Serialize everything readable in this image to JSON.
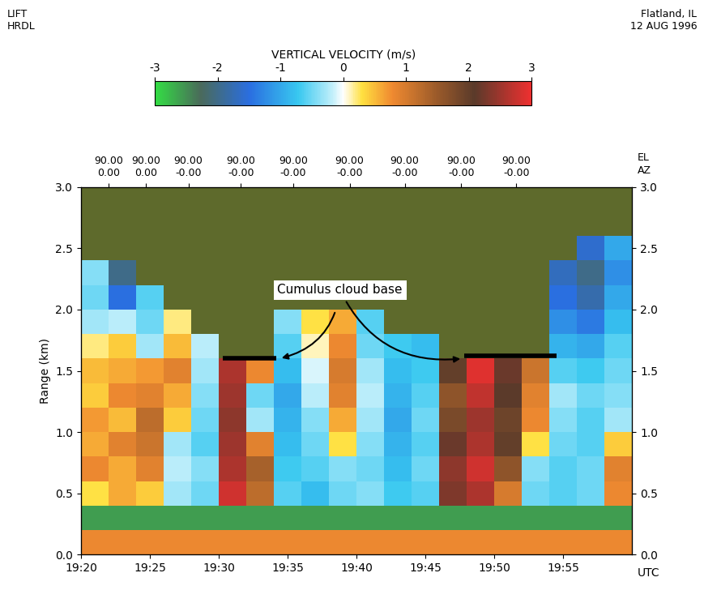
{
  "chart_data": {
    "type": "heatmap",
    "header": {
      "left": [
        "LIFT",
        "HRDL"
      ],
      "right": [
        "Flatland, IL",
        "12 AUG 1996"
      ]
    },
    "xlabel": "UTC",
    "ylabel": "Range (km)",
    "xlim": [
      20,
      60
    ],
    "ylim": [
      0,
      3
    ],
    "xticks": [
      {
        "value": 20,
        "label": "19:20"
      },
      {
        "value": 25,
        "label": "19:25"
      },
      {
        "value": 30,
        "label": "19:30"
      },
      {
        "value": 35,
        "label": "19:35"
      },
      {
        "value": 40,
        "label": "19:40"
      },
      {
        "value": 45,
        "label": "19:45"
      },
      {
        "value": 50,
        "label": "19:50"
      },
      {
        "value": 55,
        "label": "19:55"
      }
    ],
    "yticks": [
      {
        "value": 0,
        "label": "0.0"
      },
      {
        "value": 0.5,
        "label": "0.5"
      },
      {
        "value": 1,
        "label": "1.0"
      },
      {
        "value": 1.5,
        "label": "1.5"
      },
      {
        "value": 2,
        "label": "2.0"
      },
      {
        "value": 2.5,
        "label": "2.5"
      },
      {
        "value": 3,
        "label": "3.0"
      }
    ],
    "top_xticks": [
      {
        "value": 22,
        "label": "90.00\n0.00"
      },
      {
        "value": 24.7,
        "label": "90.00\n0.00"
      },
      {
        "value": 27.8,
        "label": "90.00\n-0.00"
      },
      {
        "value": 31.6,
        "label": "90.00\n-0.00"
      },
      {
        "value": 35.4,
        "label": "90.00\n-0.00"
      },
      {
        "value": 39.5,
        "label": "90.00\n-0.00"
      },
      {
        "value": 43.5,
        "label": "90.00\n-0.00"
      },
      {
        "value": 47.6,
        "label": "90.00\n-0.00"
      },
      {
        "value": 51.6,
        "label": "90.00\n-0.00"
      }
    ],
    "top_axis_labels": [
      "EL",
      "AZ"
    ],
    "colorbar": {
      "label": "VERTICAL VELOCITY (m/s)",
      "range": [
        -3,
        3
      ],
      "ticks": [
        -3,
        -2,
        -1,
        0,
        1,
        2,
        3
      ]
    },
    "time_edges": [
      20,
      22,
      24,
      26,
      28,
      30,
      32,
      34,
      36,
      38,
      40,
      42,
      44,
      46,
      48,
      50,
      52,
      54,
      56,
      58,
      60
    ],
    "range_edges": [
      0,
      0.2,
      0.4,
      0.6,
      0.8,
      1.0,
      1.2,
      1.4,
      1.6,
      1.8,
      2.0,
      2.2,
      2.4,
      2.6,
      2.8,
      3.0
    ],
    "cells": [
      [
        0.8,
        0.8,
        0.8,
        0.8,
        0.8,
        0.8,
        0.8,
        0.8,
        0.8,
        0.8,
        0.8,
        0.8,
        0.8,
        0.8,
        0.8,
        0.8,
        0.8,
        0.8,
        0.8,
        0.8
      ],
      [
        -2.6,
        -2.6,
        -2.6,
        -2.6,
        -2.6,
        -2.6,
        -2.6,
        -2.6,
        -2.6,
        -2.6,
        -2.6,
        -2.6,
        -2.6,
        -2.6,
        -2.6,
        -2.6,
        -2.6,
        -2.6,
        -2.6,
        -2.6
      ],
      [
        0.3,
        0.6,
        0.4,
        -0.3,
        -0.5,
        2.8,
        1.2,
        -0.6,
        -0.8,
        -0.5,
        -0.4,
        -0.7,
        -0.6,
        2.3,
        2.6,
        1.0,
        -0.5,
        -0.6,
        -0.5,
        0.8
      ],
      [
        0.8,
        0.6,
        0.9,
        -0.2,
        -0.4,
        2.6,
        1.4,
        -0.7,
        -0.6,
        -0.4,
        -0.5,
        -0.8,
        -0.5,
        2.4,
        2.8,
        1.6,
        -0.4,
        -0.6,
        -0.5,
        0.9
      ],
      [
        0.6,
        0.9,
        1.1,
        -0.3,
        -0.6,
        2.5,
        0.9,
        -0.8,
        -0.5,
        0.3,
        -0.4,
        -0.9,
        -0.6,
        2.2,
        2.6,
        2.0,
        0.3,
        -0.5,
        -0.6,
        0.4
      ],
      [
        0.7,
        0.5,
        1.2,
        0.4,
        -0.5,
        2.4,
        -0.3,
        -0.9,
        -0.4,
        0.6,
        -0.3,
        -1.0,
        -0.5,
        1.8,
        2.5,
        1.9,
        0.8,
        -0.4,
        -0.6,
        -0.3
      ],
      [
        0.4,
        0.8,
        0.9,
        0.6,
        -0.4,
        2.5,
        -0.5,
        -1.0,
        -0.2,
        0.9,
        -0.2,
        -0.9,
        -0.6,
        1.6,
        2.7,
        2.1,
        0.9,
        -0.3,
        -0.5,
        -0.4
      ],
      [
        0.5,
        0.6,
        0.7,
        0.9,
        -0.3,
        2.6,
        0.8,
        -0.8,
        -0.1,
        1.0,
        -0.3,
        -0.8,
        -0.7,
        2.0,
        2.9,
        2.2,
        1.1,
        -0.6,
        -0.7,
        -0.5
      ],
      [
        0.2,
        0.4,
        -0.3,
        0.5,
        -0.2,
        null,
        null,
        -0.6,
        0.1,
        0.8,
        -0.5,
        -0.7,
        -0.8,
        null,
        null,
        null,
        null,
        -0.9,
        -1.0,
        -0.6
      ],
      [
        -0.3,
        -0.2,
        -0.5,
        0.2,
        null,
        null,
        null,
        -0.4,
        0.3,
        0.6,
        -0.6,
        null,
        null,
        null,
        null,
        null,
        null,
        -1.2,
        -1.4,
        -0.8
      ],
      [
        -0.5,
        -1.5,
        -0.6,
        null,
        null,
        null,
        null,
        null,
        null,
        null,
        null,
        null,
        null,
        null,
        null,
        null,
        null,
        -1.5,
        -1.8,
        -1.0
      ],
      [
        -0.4,
        -2.0,
        null,
        null,
        null,
        null,
        null,
        null,
        null,
        null,
        null,
        null,
        null,
        null,
        null,
        null,
        null,
        -1.7,
        -2.0,
        -1.2
      ],
      [
        null,
        null,
        null,
        null,
        null,
        null,
        null,
        null,
        null,
        null,
        null,
        null,
        null,
        null,
        null,
        null,
        null,
        null,
        -1.6,
        -1.0
      ],
      [
        null,
        null,
        null,
        null,
        null,
        null,
        null,
        null,
        null,
        null,
        null,
        null,
        null,
        null,
        null,
        null,
        null,
        null,
        null,
        null
      ],
      [
        null,
        null,
        null,
        null,
        null,
        null,
        null,
        null,
        null,
        null,
        null,
        null,
        null,
        null,
        null,
        null,
        null,
        null,
        null,
        null
      ]
    ],
    "cloud_base_lines": [
      {
        "x": [
          30.3,
          34.2
        ],
        "y": 1.6
      },
      {
        "x": [
          47.8,
          54.5
        ],
        "y": 1.62
      }
    ],
    "annotation": {
      "text": "Cumulus cloud base",
      "targets": [
        [
          34.4,
          1.6
        ],
        [
          47.7,
          1.6
        ]
      ]
    }
  }
}
